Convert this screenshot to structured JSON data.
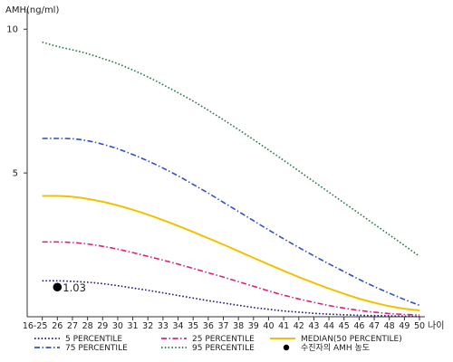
{
  "chart_data": {
    "type": "line",
    "ylabel": "AMH(ng/ml)",
    "xlabel": "나이",
    "ylim": [
      0,
      10.7
    ],
    "yticks": [
      5,
      10
    ],
    "categories": [
      "16-25",
      "26",
      "27",
      "28",
      "29",
      "30",
      "31",
      "32",
      "33",
      "34",
      "35",
      "36",
      "37",
      "38",
      "39",
      "40",
      "41",
      "42",
      "43",
      "44",
      "45",
      "46",
      "47",
      "48",
      "49",
      "50"
    ],
    "grid": false,
    "series": [
      {
        "name": "5 PERCENTILE",
        "color": "#1a1a7a",
        "style": "dotted",
        "values": [
          1.25,
          1.25,
          1.23,
          1.2,
          1.15,
          1.08,
          1.0,
          0.92,
          0.83,
          0.74,
          0.65,
          0.56,
          0.48,
          0.4,
          0.32,
          0.26,
          0.2,
          0.16,
          0.12,
          0.09,
          0.07,
          0.05,
          0.04,
          0.03,
          0.02,
          0.01
        ]
      },
      {
        "name": "25 PERCENTILE",
        "color": "#e0207a",
        "style": "dashdot",
        "values": [
          2.6,
          2.6,
          2.58,
          2.53,
          2.45,
          2.35,
          2.23,
          2.1,
          1.97,
          1.83,
          1.68,
          1.53,
          1.38,
          1.22,
          1.06,
          0.9,
          0.75,
          0.62,
          0.5,
          0.39,
          0.3,
          0.22,
          0.16,
          0.11,
          0.08,
          0.06
        ]
      },
      {
        "name": "MEDIAN(50 PERCENTILE)",
        "color": "#f2c200",
        "style": "solid",
        "values": [
          4.2,
          4.2,
          4.17,
          4.1,
          4.0,
          3.87,
          3.72,
          3.55,
          3.36,
          3.16,
          2.95,
          2.73,
          2.51,
          2.28,
          2.05,
          1.82,
          1.6,
          1.38,
          1.18,
          0.98,
          0.8,
          0.63,
          0.49,
          0.37,
          0.28,
          0.22
        ]
      },
      {
        "name": "75 PERCENTILE",
        "color": "#3050c8",
        "style": "dashdot",
        "values": [
          6.2,
          6.2,
          6.19,
          6.12,
          6.0,
          5.84,
          5.64,
          5.42,
          5.17,
          4.9,
          4.6,
          4.3,
          3.98,
          3.66,
          3.34,
          3.02,
          2.71,
          2.41,
          2.12,
          1.84,
          1.57,
          1.3,
          1.05,
          0.82,
          0.6,
          0.4
        ]
      },
      {
        "name": "95 PERCENTILE",
        "color": "#2a7a4a",
        "style": "dotted",
        "values": [
          9.55,
          9.4,
          9.28,
          9.15,
          8.98,
          8.8,
          8.58,
          8.34,
          8.07,
          7.79,
          7.5,
          7.18,
          6.85,
          6.51,
          6.16,
          5.8,
          5.44,
          5.07,
          4.7,
          4.33,
          3.96,
          3.59,
          3.22,
          2.85,
          2.48,
          2.1
        ]
      }
    ],
    "annotation": {
      "category": "26",
      "value": 1.03,
      "label": "1.03"
    },
    "legend": {
      "position": "bottom",
      "entries": [
        {
          "label": "5 PERCENTILE",
          "color": "#1a1a7a",
          "style": "dotted"
        },
        {
          "label": "25 PERCENTILE",
          "color": "#e0207a",
          "style": "dashdot"
        },
        {
          "label": "MEDIAN(50 PERCENTILE)",
          "color": "#f2c200",
          "style": "solid"
        },
        {
          "label": "75 PERCENTILE",
          "color": "#3050c8",
          "style": "dashdot"
        },
        {
          "label": "95 PERCENTILE",
          "color": "#2a7a4a",
          "style": "dotted"
        },
        {
          "label": "수진자의 AMH 농도",
          "color": "#000000",
          "style": "marker"
        }
      ]
    }
  }
}
